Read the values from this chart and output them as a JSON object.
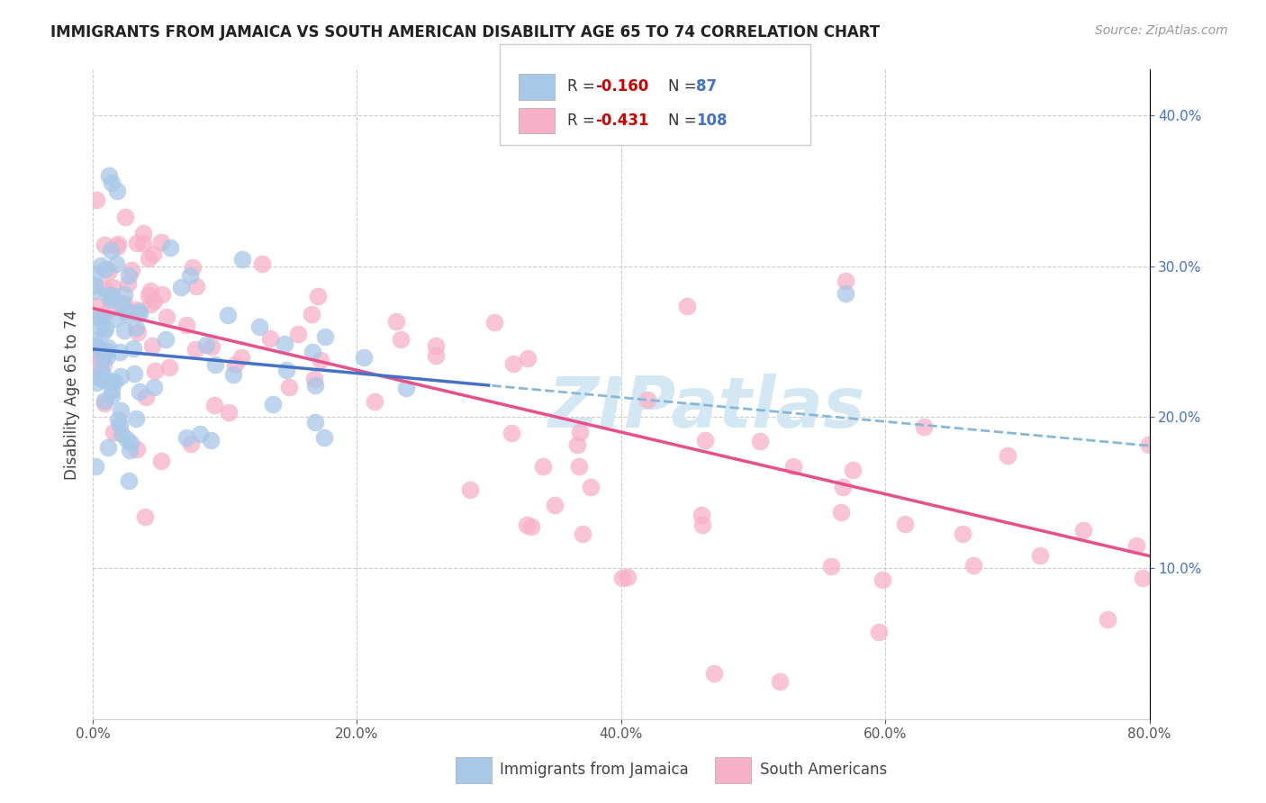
{
  "title": "IMMIGRANTS FROM JAMAICA VS SOUTH AMERICAN DISABILITY AGE 65 TO 74 CORRELATION CHART",
  "source": "Source: ZipAtlas.com",
  "ylabel": "Disability Age 65 to 74",
  "xlim": [
    0.0,
    0.8
  ],
  "ylim": [
    0.0,
    0.43
  ],
  "xticks": [
    0.0,
    0.2,
    0.4,
    0.6,
    0.8
  ],
  "yticks_right": [
    0.1,
    0.2,
    0.3,
    0.4
  ],
  "jamaica_R": -0.16,
  "jamaica_N": 87,
  "southam_R": -0.431,
  "southam_N": 108,
  "jamaica_scatter_color": "#a8c8e8",
  "southam_scatter_color": "#f8b0c8",
  "jamaica_line_color": "#4472c4",
  "southam_line_color": "#e8508c",
  "dash_line_color": "#88b8d8",
  "right_axis_color": "#4472c4",
  "watermark": "ZIPatlas",
  "watermark_color": "#d4e8f4",
  "legend_jamaica_label": "Immigrants from Jamaica",
  "legend_southam_label": "South Americans",
  "legend_r_color": "#cc0000",
  "legend_n_color": "#4472c4",
  "title_fontsize": 12,
  "source_fontsize": 10,
  "tick_fontsize": 11,
  "legend_fontsize": 12
}
